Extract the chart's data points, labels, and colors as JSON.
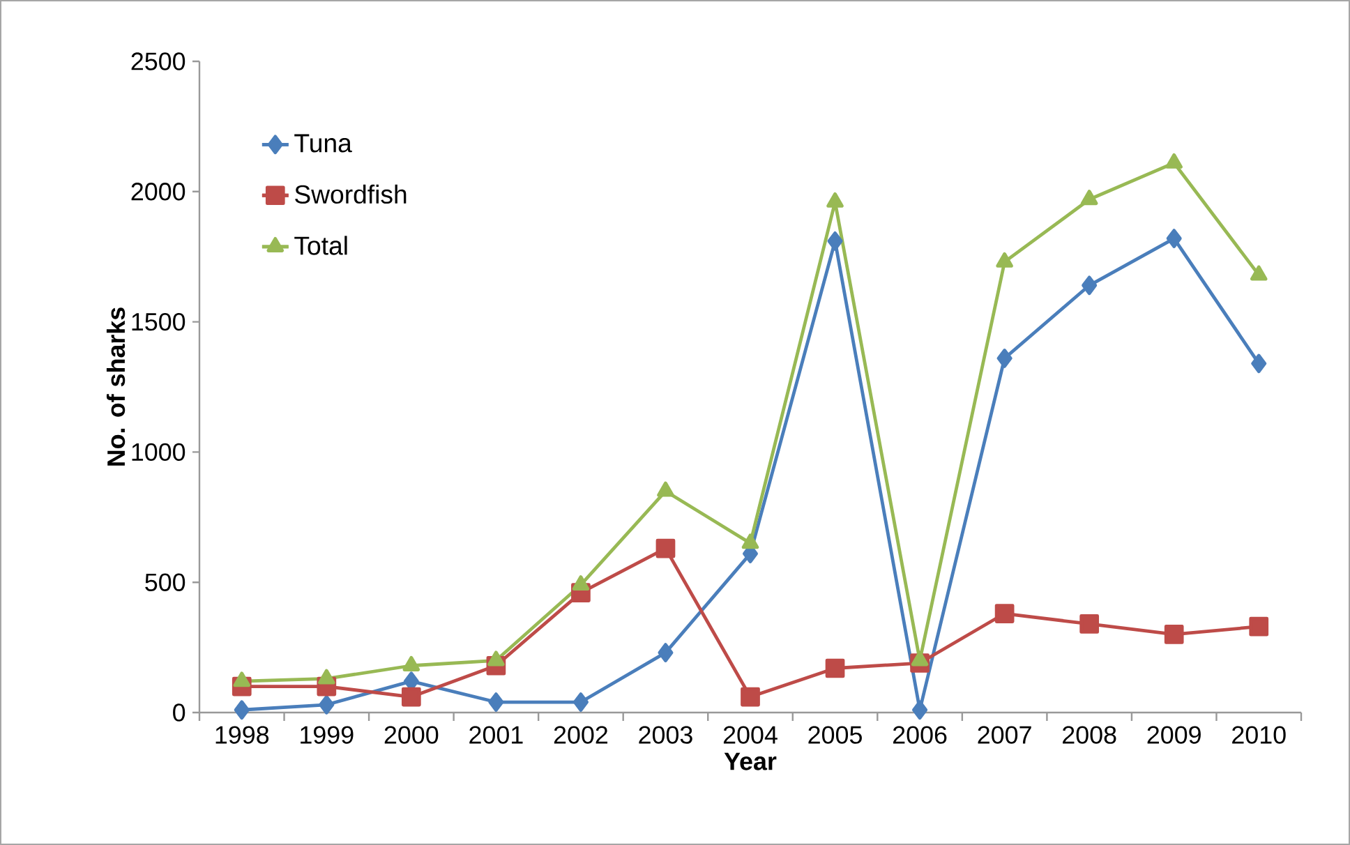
{
  "chart_data": {
    "type": "line",
    "xlabel": "Year",
    "ylabel": "No. of sharks",
    "categories": [
      "1998",
      "1999",
      "2000",
      "2001",
      "2002",
      "2003",
      "2004",
      "2005",
      "2006",
      "2007",
      "2008",
      "2009",
      "2010"
    ],
    "series": [
      {
        "name": "Tuna",
        "color": "#4a7ebb",
        "marker": "diamond",
        "values": [
          10,
          30,
          120,
          40,
          40,
          230,
          610,
          1810,
          10,
          1360,
          1640,
          1820,
          1340
        ]
      },
      {
        "name": "Swordfish",
        "color": "#be4b48",
        "marker": "square",
        "values": [
          100,
          100,
          60,
          180,
          460,
          630,
          60,
          170,
          190,
          380,
          340,
          300,
          330
        ]
      },
      {
        "name": "Total",
        "color": "#98b954",
        "marker": "triangle",
        "values": [
          120,
          130,
          180,
          200,
          490,
          850,
          650,
          1960,
          200,
          1730,
          1970,
          2110,
          1680
        ]
      }
    ],
    "ylim": [
      0,
      2500
    ],
    "yticks": [
      0,
      500,
      1000,
      1500,
      2000,
      2500
    ],
    "grid": false,
    "legend": "top left",
    "line_style": "solid"
  }
}
